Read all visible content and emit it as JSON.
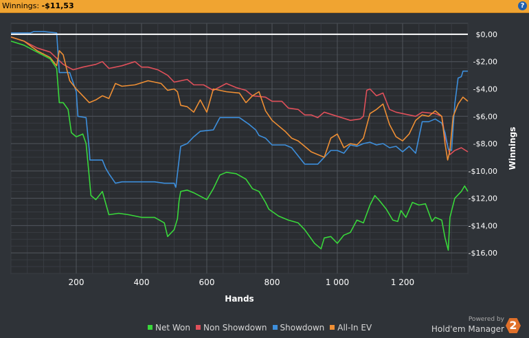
{
  "header": {
    "winnings_label": "Winnings:",
    "winnings_value": "-$11,53",
    "help_icon": "help-icon"
  },
  "brand": {
    "powered_by": "Powered by",
    "name": "Hold'em Manager",
    "badge": "2"
  },
  "colors": {
    "net_won": "#39d83b",
    "non_showdown": "#e0505a",
    "showdown": "#3d8fdc",
    "all_in_ev": "#ef8f34",
    "zero_line": "#ffffff",
    "background": "#2f3338"
  },
  "chart_data": {
    "type": "line",
    "xlabel": "Hands",
    "ylabel": "Winnings",
    "xlim": [
      0,
      1400
    ],
    "ylim": [
      -17.5,
      0.8
    ],
    "x_ticks": [
      200,
      400,
      600,
      800,
      1000,
      1200
    ],
    "x_tick_labels": [
      "200",
      "400",
      "600",
      "800",
      "1 000",
      "1 200"
    ],
    "y_ticks": [
      0,
      -2,
      -4,
      -6,
      -8,
      -10,
      -12,
      -14,
      -16
    ],
    "y_tick_labels": [
      "$0,00",
      "-$2,00",
      "-$4,00",
      "-$6,00",
      "-$8,00",
      "-$10,00",
      "-$12,00",
      "-$14,00",
      "-$16,00"
    ],
    "grid": true,
    "legend_position": "bottom-center",
    "series": [
      {
        "name": "Net Won",
        "color": "#39d83b",
        "points": [
          [
            0,
            -0.5
          ],
          [
            40,
            -0.8
          ],
          [
            80,
            -1.3
          ],
          [
            120,
            -1.8
          ],
          [
            140,
            -2.5
          ],
          [
            148,
            -5.0
          ],
          [
            160,
            -5.0
          ],
          [
            175,
            -5.5
          ],
          [
            185,
            -7.2
          ],
          [
            200,
            -7.5
          ],
          [
            220,
            -7.3
          ],
          [
            230,
            -8.0
          ],
          [
            238,
            -10.0
          ],
          [
            245,
            -11.8
          ],
          [
            260,
            -12.1
          ],
          [
            280,
            -11.5
          ],
          [
            300,
            -13.2
          ],
          [
            330,
            -13.1
          ],
          [
            360,
            -13.2
          ],
          [
            400,
            -13.4
          ],
          [
            440,
            -13.4
          ],
          [
            470,
            -13.8
          ],
          [
            480,
            -14.8
          ],
          [
            500,
            -14.3
          ],
          [
            510,
            -13.5
          ],
          [
            515,
            -12.2
          ],
          [
            520,
            -11.5
          ],
          [
            540,
            -11.4
          ],
          [
            560,
            -11.6
          ],
          [
            600,
            -12.1
          ],
          [
            620,
            -11.3
          ],
          [
            640,
            -10.3
          ],
          [
            660,
            -10.1
          ],
          [
            690,
            -10.2
          ],
          [
            720,
            -10.6
          ],
          [
            740,
            -11.3
          ],
          [
            760,
            -11.5
          ],
          [
            780,
            -12.3
          ],
          [
            790,
            -12.8
          ],
          [
            820,
            -13.3
          ],
          [
            850,
            -13.6
          ],
          [
            880,
            -13.8
          ],
          [
            900,
            -14.3
          ],
          [
            930,
            -15.3
          ],
          [
            950,
            -15.7
          ],
          [
            960,
            -14.9
          ],
          [
            980,
            -14.8
          ],
          [
            1000,
            -15.3
          ],
          [
            1020,
            -14.7
          ],
          [
            1040,
            -14.5
          ],
          [
            1060,
            -13.6
          ],
          [
            1080,
            -13.8
          ],
          [
            1100,
            -12.5
          ],
          [
            1115,
            -11.8
          ],
          [
            1130,
            -12.2
          ],
          [
            1150,
            -12.8
          ],
          [
            1170,
            -13.6
          ],
          [
            1185,
            -13.7
          ],
          [
            1195,
            -12.9
          ],
          [
            1210,
            -13.4
          ],
          [
            1230,
            -12.3
          ],
          [
            1250,
            -12.5
          ],
          [
            1270,
            -12.4
          ],
          [
            1290,
            -13.7
          ],
          [
            1300,
            -13.4
          ],
          [
            1320,
            -13.6
          ],
          [
            1330,
            -14.9
          ],
          [
            1340,
            -15.8
          ],
          [
            1345,
            -13.4
          ],
          [
            1360,
            -12.0
          ],
          [
            1380,
            -11.5
          ],
          [
            1390,
            -11.1
          ],
          [
            1400,
            -11.5
          ]
        ]
      },
      {
        "name": "Non Showdown",
        "color": "#e0505a",
        "points": [
          [
            0,
            -0.2
          ],
          [
            40,
            -0.5
          ],
          [
            80,
            -1.0
          ],
          [
            120,
            -1.3
          ],
          [
            160,
            -2.2
          ],
          [
            190,
            -2.6
          ],
          [
            220,
            -2.4
          ],
          [
            240,
            -2.3
          ],
          [
            260,
            -2.2
          ],
          [
            280,
            -2.0
          ],
          [
            300,
            -2.5
          ],
          [
            340,
            -2.3
          ],
          [
            380,
            -2.0
          ],
          [
            400,
            -2.4
          ],
          [
            420,
            -2.4
          ],
          [
            450,
            -2.6
          ],
          [
            480,
            -3.0
          ],
          [
            500,
            -3.5
          ],
          [
            540,
            -3.3
          ],
          [
            560,
            -3.7
          ],
          [
            590,
            -3.7
          ],
          [
            620,
            -4.1
          ],
          [
            660,
            -3.6
          ],
          [
            690,
            -3.9
          ],
          [
            720,
            -4.1
          ],
          [
            740,
            -4.5
          ],
          [
            780,
            -4.6
          ],
          [
            800,
            -4.9
          ],
          [
            830,
            -4.9
          ],
          [
            850,
            -5.4
          ],
          [
            880,
            -5.5
          ],
          [
            900,
            -5.9
          ],
          [
            920,
            -5.9
          ],
          [
            940,
            -6.1
          ],
          [
            960,
            -5.7
          ],
          [
            1000,
            -6.0
          ],
          [
            1040,
            -6.3
          ],
          [
            1070,
            -6.2
          ],
          [
            1080,
            -6.0
          ],
          [
            1090,
            -4.1
          ],
          [
            1100,
            -4.0
          ],
          [
            1120,
            -4.5
          ],
          [
            1140,
            -4.3
          ],
          [
            1160,
            -5.5
          ],
          [
            1180,
            -5.7
          ],
          [
            1200,
            -5.8
          ],
          [
            1240,
            -6.0
          ],
          [
            1260,
            -5.7
          ],
          [
            1300,
            -5.8
          ],
          [
            1320,
            -6.0
          ],
          [
            1330,
            -7.5
          ],
          [
            1345,
            -8.8
          ],
          [
            1360,
            -8.5
          ],
          [
            1380,
            -8.3
          ],
          [
            1400,
            -8.6
          ]
        ]
      },
      {
        "name": "Showdown",
        "color": "#3d8fdc",
        "points": [
          [
            0,
            0.1
          ],
          [
            30,
            0.1
          ],
          [
            60,
            0.1
          ],
          [
            70,
            0.2
          ],
          [
            100,
            0.2
          ],
          [
            140,
            0.1
          ],
          [
            148,
            -2.8
          ],
          [
            180,
            -2.8
          ],
          [
            200,
            -4.2
          ],
          [
            205,
            -6.0
          ],
          [
            230,
            -6.1
          ],
          [
            240,
            -8.5
          ],
          [
            242,
            -9.2
          ],
          [
            260,
            -9.2
          ],
          [
            280,
            -9.2
          ],
          [
            290,
            -9.8
          ],
          [
            300,
            -10.2
          ],
          [
            320,
            -10.9
          ],
          [
            340,
            -10.8
          ],
          [
            400,
            -10.8
          ],
          [
            440,
            -10.8
          ],
          [
            470,
            -10.9
          ],
          [
            500,
            -10.9
          ],
          [
            505,
            -11.2
          ],
          [
            520,
            -8.2
          ],
          [
            540,
            -8.0
          ],
          [
            560,
            -7.5
          ],
          [
            580,
            -7.1
          ],
          [
            620,
            -7.0
          ],
          [
            640,
            -6.1
          ],
          [
            670,
            -6.1
          ],
          [
            700,
            -6.1
          ],
          [
            730,
            -6.6
          ],
          [
            750,
            -7.0
          ],
          [
            760,
            -7.4
          ],
          [
            780,
            -7.6
          ],
          [
            800,
            -8.1
          ],
          [
            840,
            -8.1
          ],
          [
            860,
            -8.3
          ],
          [
            880,
            -8.9
          ],
          [
            900,
            -9.5
          ],
          [
            940,
            -9.5
          ],
          [
            960,
            -9.0
          ],
          [
            980,
            -8.5
          ],
          [
            1000,
            -8.5
          ],
          [
            1020,
            -8.7
          ],
          [
            1040,
            -8.1
          ],
          [
            1060,
            -8.2
          ],
          [
            1080,
            -8.0
          ],
          [
            1100,
            -7.9
          ],
          [
            1120,
            -8.1
          ],
          [
            1140,
            -8.0
          ],
          [
            1160,
            -8.3
          ],
          [
            1180,
            -8.2
          ],
          [
            1200,
            -8.6
          ],
          [
            1220,
            -8.2
          ],
          [
            1240,
            -8.7
          ],
          [
            1260,
            -6.4
          ],
          [
            1280,
            -6.4
          ],
          [
            1300,
            -6.2
          ],
          [
            1320,
            -6.5
          ],
          [
            1330,
            -7.2
          ],
          [
            1340,
            -8.4
          ],
          [
            1350,
            -8.5
          ],
          [
            1355,
            -6.8
          ],
          [
            1360,
            -5.1
          ],
          [
            1370,
            -3.2
          ],
          [
            1380,
            -3.1
          ],
          [
            1385,
            -2.7
          ],
          [
            1400,
            -2.7
          ]
        ]
      },
      {
        "name": "All-In EV",
        "color": "#ef8f34",
        "points": [
          [
            0,
            -0.2
          ],
          [
            40,
            -0.5
          ],
          [
            80,
            -1.2
          ],
          [
            120,
            -1.7
          ],
          [
            140,
            -2.3
          ],
          [
            148,
            -1.2
          ],
          [
            160,
            -1.5
          ],
          [
            170,
            -2.5
          ],
          [
            180,
            -3.4
          ],
          [
            200,
            -4.0
          ],
          [
            220,
            -4.5
          ],
          [
            240,
            -5.0
          ],
          [
            260,
            -4.8
          ],
          [
            280,
            -4.5
          ],
          [
            300,
            -4.7
          ],
          [
            320,
            -3.6
          ],
          [
            340,
            -3.8
          ],
          [
            380,
            -3.7
          ],
          [
            420,
            -3.4
          ],
          [
            460,
            -3.6
          ],
          [
            480,
            -4.1
          ],
          [
            500,
            -4.0
          ],
          [
            510,
            -4.2
          ],
          [
            520,
            -5.2
          ],
          [
            540,
            -5.3
          ],
          [
            560,
            -5.7
          ],
          [
            580,
            -4.8
          ],
          [
            600,
            -5.7
          ],
          [
            620,
            -4.0
          ],
          [
            660,
            -4.2
          ],
          [
            700,
            -4.3
          ],
          [
            720,
            -5.0
          ],
          [
            740,
            -4.5
          ],
          [
            760,
            -4.2
          ],
          [
            780,
            -5.6
          ],
          [
            800,
            -6.3
          ],
          [
            820,
            -6.7
          ],
          [
            840,
            -7.1
          ],
          [
            860,
            -7.6
          ],
          [
            880,
            -7.8
          ],
          [
            900,
            -8.2
          ],
          [
            920,
            -8.6
          ],
          [
            940,
            -8.8
          ],
          [
            960,
            -9.0
          ],
          [
            980,
            -7.6
          ],
          [
            1000,
            -7.3
          ],
          [
            1020,
            -8.3
          ],
          [
            1040,
            -8.0
          ],
          [
            1060,
            -8.1
          ],
          [
            1080,
            -7.6
          ],
          [
            1100,
            -5.8
          ],
          [
            1120,
            -5.5
          ],
          [
            1140,
            -5.1
          ],
          [
            1160,
            -6.6
          ],
          [
            1180,
            -7.5
          ],
          [
            1200,
            -7.8
          ],
          [
            1220,
            -7.3
          ],
          [
            1240,
            -6.3
          ],
          [
            1260,
            -5.9
          ],
          [
            1280,
            -6.0
          ],
          [
            1300,
            -5.6
          ],
          [
            1320,
            -6.0
          ],
          [
            1330,
            -8.0
          ],
          [
            1338,
            -9.2
          ],
          [
            1345,
            -8.5
          ],
          [
            1355,
            -6.0
          ],
          [
            1370,
            -5.1
          ],
          [
            1385,
            -4.6
          ],
          [
            1400,
            -4.9
          ]
        ]
      }
    ]
  }
}
